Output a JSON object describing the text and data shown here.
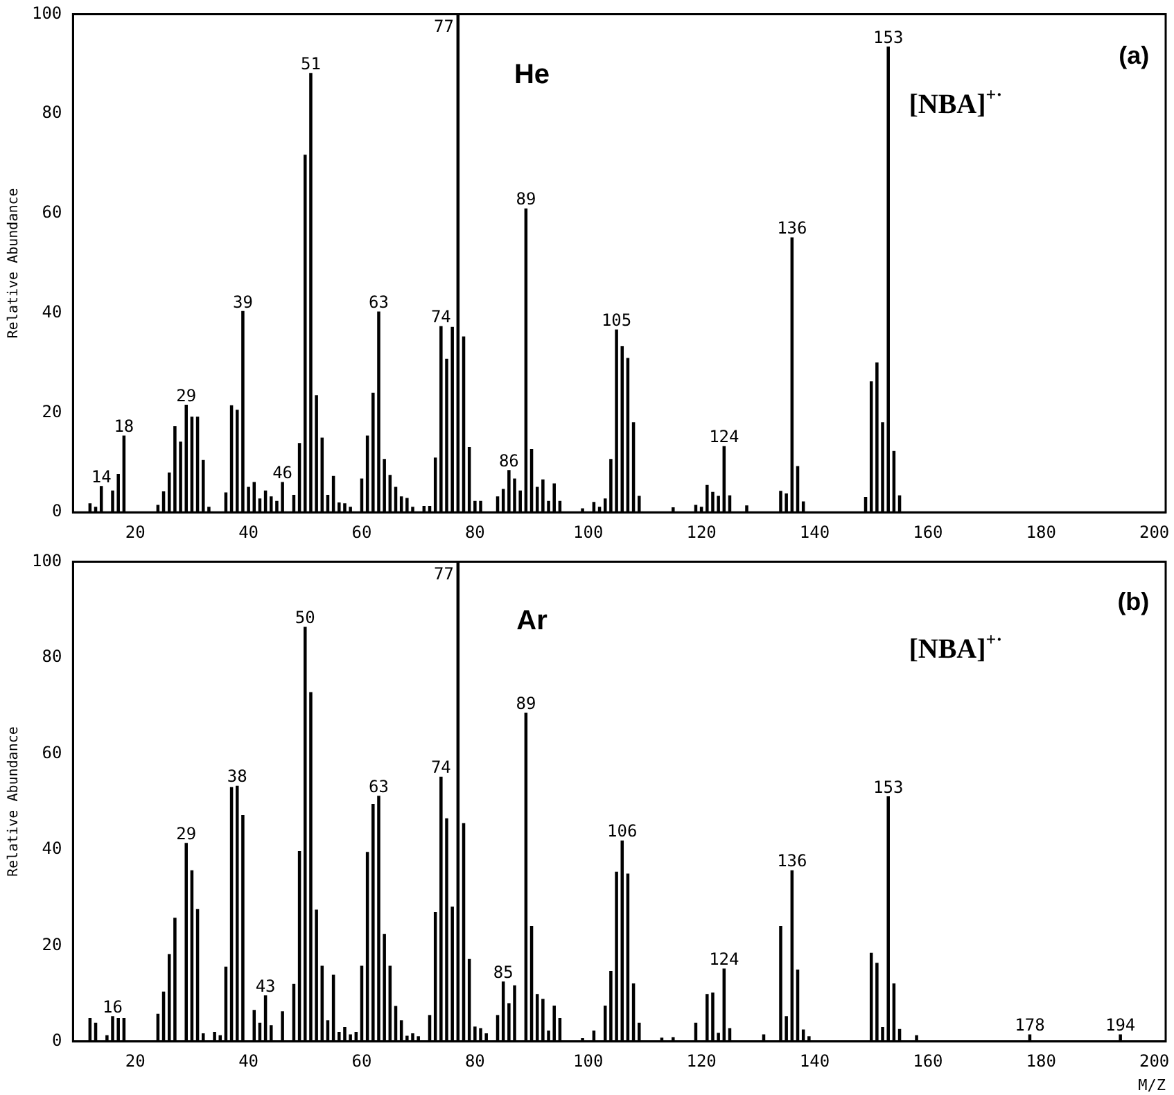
{
  "chart_data": [
    {
      "type": "bar",
      "color": "#000000",
      "ylabel": "Relative Abundance",
      "xlim": [
        9,
        202
      ],
      "xticks": [
        20,
        40,
        60,
        80,
        100,
        120,
        140,
        160,
        180,
        200
      ],
      "ylim": [
        0,
        100
      ],
      "yticks": [
        0,
        20,
        40,
        60,
        80,
        100
      ],
      "x": [
        12,
        13,
        14,
        16,
        17,
        18,
        24,
        25,
        26,
        27,
        28,
        29,
        30,
        31,
        32,
        33,
        36,
        37,
        38,
        39,
        40,
        41,
        42,
        43,
        44,
        45,
        46,
        48,
        49,
        50,
        51,
        52,
        53,
        54,
        55,
        56,
        57,
        58,
        60,
        61,
        62,
        63,
        64,
        65,
        66,
        67,
        68,
        69,
        71,
        72,
        73,
        74,
        75,
        76,
        77,
        78,
        79,
        80,
        81,
        84,
        85,
        86,
        87,
        88,
        89,
        90,
        91,
        92,
        93,
        94,
        95,
        99,
        101,
        102,
        103,
        104,
        105,
        106,
        107,
        108,
        109,
        115,
        119,
        120,
        121,
        122,
        123,
        124,
        125,
        128,
        134,
        135,
        136,
        137,
        138,
        149,
        150,
        151,
        152,
        153,
        154,
        155
      ],
      "values": [
        1.7,
        1,
        5.2,
        4.3,
        7.6,
        15.3,
        1.4,
        4.1,
        7.9,
        17.2,
        14.1,
        21.5,
        19.1,
        19.1,
        10.4,
        1,
        3.9,
        21.4,
        20.5,
        40.3,
        5,
        6,
        2.7,
        4.3,
        3.1,
        2.2,
        6,
        3.4,
        13.8,
        71.7,
        88.1,
        23.4,
        14.9,
        3.4,
        7.2,
        1.9,
        1.7,
        1,
        6.7,
        15.3,
        23.9,
        40.2,
        10.6,
        7.4,
        5,
        3.1,
        2.8,
        1,
        1.2,
        1.2,
        10.9,
        37.3,
        30.7,
        37.1,
        100,
        35.2,
        13,
        2.2,
        2.2,
        3.1,
        4.6,
        8.4,
        6.7,
        4.3,
        60.9,
        12.6,
        5,
        6.5,
        2.2,
        5.7,
        2.2,
        0.7,
        2,
        1,
        2.7,
        10.6,
        36.6,
        33.3,
        30.9,
        18,
        3.2,
        0.9,
        1.4,
        1,
        5.4,
        4,
        3.2,
        13.2,
        3.3,
        1.3,
        4.2,
        3.7,
        55.1,
        9.2,
        2.1,
        3,
        26.2,
        30,
        18,
        93.4,
        12.2,
        3.3
      ],
      "annotations": [
        "He",
        "(a)",
        "[NBA]$^{+·}$",
        {
          "text": "14",
          "x": 14,
          "y": 5.2
        },
        {
          "text": "18",
          "x": 18,
          "y": 15.3
        },
        {
          "text": "29",
          "x": 29,
          "y": 21.5
        },
        {
          "text": "39",
          "x": 39,
          "y": 40.3
        },
        {
          "text": "46",
          "x": 46,
          "y": 6
        },
        {
          "text": "51",
          "x": 51,
          "y": 88.1
        },
        {
          "text": "63",
          "x": 63,
          "y": 40.2
        },
        {
          "text": "74",
          "x": 74,
          "y": 37.3
        },
        {
          "text": "77",
          "x": 77,
          "y": 100
        },
        {
          "text": "86",
          "x": 86,
          "y": 8.4
        },
        {
          "text": "89",
          "x": 89,
          "y": 60.9
        },
        {
          "text": "105",
          "x": 105,
          "y": 36.6
        },
        {
          "text": "124",
          "x": 124,
          "y": 13.2
        },
        {
          "text": "136",
          "x": 136,
          "y": 55.1
        },
        {
          "text": "153",
          "x": 153,
          "y": 93.4
        }
      ]
    },
    {
      "type": "bar",
      "color": "#000000",
      "ylabel": "Relative Abundance",
      "xlabel": "M/Z",
      "xlim": [
        9,
        202
      ],
      "xticks": [
        20,
        40,
        60,
        80,
        100,
        120,
        140,
        160,
        180,
        200
      ],
      "ylim": [
        0,
        100
      ],
      "yticks": [
        0,
        20,
        40,
        60,
        80,
        100
      ],
      "x": [
        12,
        13,
        15,
        16,
        17,
        18,
        24,
        25,
        26,
        27,
        29,
        30,
        31,
        32,
        34,
        35,
        36,
        37,
        38,
        39,
        41,
        42,
        43,
        44,
        46,
        48,
        49,
        50,
        51,
        52,
        53,
        54,
        55,
        56,
        57,
        58,
        59,
        60,
        61,
        62,
        63,
        64,
        65,
        66,
        67,
        68,
        69,
        70,
        72,
        73,
        74,
        75,
        76,
        77,
        78,
        79,
        80,
        81,
        82,
        84,
        85,
        86,
        87,
        89,
        90,
        91,
        92,
        93,
        94,
        95,
        99,
        101,
        103,
        104,
        105,
        106,
        107,
        108,
        109,
        113,
        115,
        119,
        121,
        122,
        123,
        124,
        125,
        131,
        134,
        135,
        136,
        137,
        138,
        139,
        150,
        151,
        152,
        153,
        154,
        155,
        158,
        178,
        194
      ],
      "values": [
        4.8,
        3.8,
        1.2,
        5.2,
        4.8,
        4.8,
        5.7,
        10.3,
        18.1,
        25.7,
        41.3,
        35.6,
        27.5,
        1.6,
        1.9,
        1.2,
        15.5,
        52.9,
        53.2,
        47.1,
        6.5,
        3.8,
        9.5,
        3.3,
        6.2,
        11.9,
        39.6,
        86.3,
        72.7,
        27.4,
        15.7,
        4.3,
        13.8,
        1.9,
        2.9,
        1.4,
        1.9,
        15.7,
        39.4,
        49.4,
        51.1,
        22.3,
        15.7,
        7.3,
        4.3,
        1.1,
        1.6,
        1,
        5.4,
        26.9,
        55.1,
        46.4,
        28,
        100,
        45.4,
        17.1,
        3,
        2.7,
        1.6,
        5.4,
        12.4,
        7.9,
        11.6,
        68.4,
        24,
        9.8,
        8.8,
        2.2,
        7.4,
        4.8,
        0.6,
        2.2,
        7.4,
        14.6,
        35.3,
        41.8,
        34.9,
        12,
        3.8,
        0.7,
        0.8,
        3.8,
        9.8,
        10.1,
        1.7,
        15.1,
        2.7,
        1.4,
        24,
        5.2,
        35.6,
        14.9,
        2.4,
        1,
        18.4,
        16.3,
        2.9,
        51,
        12,
        2.5,
        1.2,
        1.4,
        1.4
      ],
      "annotations": [
        "Ar",
        "(b)",
        "[NBA]$^{+·}$",
        {
          "text": "16",
          "x": 16,
          "y": 5.2
        },
        {
          "text": "29",
          "x": 29,
          "y": 41.3
        },
        {
          "text": "38",
          "x": 38,
          "y": 53.2
        },
        {
          "text": "43",
          "x": 43,
          "y": 9.5
        },
        {
          "text": "50",
          "x": 50,
          "y": 86.3
        },
        {
          "text": "63",
          "x": 63,
          "y": 51.1
        },
        {
          "text": "74",
          "x": 74,
          "y": 55.1
        },
        {
          "text": "77",
          "x": 77,
          "y": 100
        },
        {
          "text": "85",
          "x": 85,
          "y": 12.4
        },
        {
          "text": "89",
          "x": 89,
          "y": 68.4
        },
        {
          "text": "106",
          "x": 106,
          "y": 41.8
        },
        {
          "text": "124",
          "x": 124,
          "y": 15.1
        },
        {
          "text": "136",
          "x": 136,
          "y": 35.6
        },
        {
          "text": "153",
          "x": 153,
          "y": 51
        },
        {
          "text": "178",
          "x": 178,
          "y": 1.4
        },
        {
          "text": "194",
          "x": 194,
          "y": 1.4
        }
      ]
    }
  ]
}
